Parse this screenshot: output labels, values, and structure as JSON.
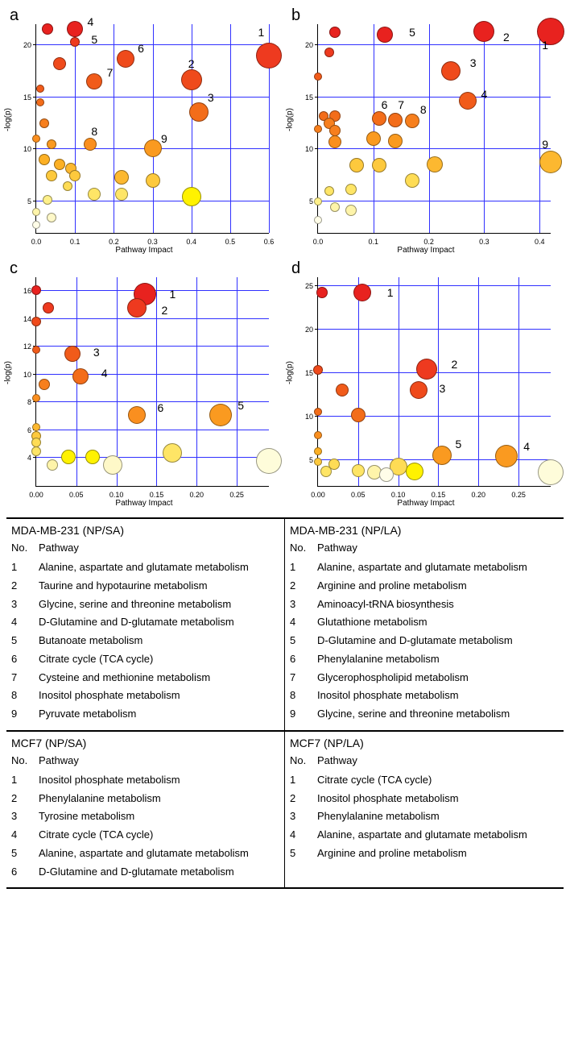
{
  "labels": {
    "xlabel": "Pathway Impact",
    "ylabel": "-log(p)",
    "no": "No.",
    "pathway": "Pathway"
  },
  "panels": {
    "a": {
      "letter": "a",
      "xlim": [
        0,
        0.6
      ],
      "xtick_step": 0.1,
      "x_decimals": 1,
      "ylim": [
        2,
        22
      ],
      "yticks": [
        5,
        10,
        15,
        20
      ],
      "grid_color": "#3030ff",
      "points": [
        {
          "x": 0.6,
          "y": 19.0,
          "r": 16,
          "c": "#ee3a1f",
          "lbl": "1",
          "lx": 0.58,
          "ly": 21.2
        },
        {
          "x": 0.4,
          "y": 16.7,
          "r": 13,
          "c": "#ef4a1b",
          "lbl": "2",
          "lx": 0.4,
          "ly": 18.2
        },
        {
          "x": 0.42,
          "y": 13.6,
          "r": 12,
          "c": "#f36d1a",
          "lbl": "3",
          "lx": 0.45,
          "ly": 15.0
        },
        {
          "x": 0.1,
          "y": 21.5,
          "r": 10,
          "c": "#e8221f",
          "lbl": "4",
          "lx": 0.14,
          "ly": 22.2
        },
        {
          "x": 0.03,
          "y": 21.5,
          "r": 7,
          "c": "#e8221f"
        },
        {
          "x": 0.1,
          "y": 20.3,
          "r": 6,
          "c": "#ee3a1f",
          "lbl": "5",
          "lx": 0.15,
          "ly": 20.5
        },
        {
          "x": 0.23,
          "y": 18.7,
          "r": 11,
          "c": "#ef4a1b",
          "lbl": "6",
          "lx": 0.27,
          "ly": 19.7
        },
        {
          "x": 0.15,
          "y": 16.5,
          "r": 10,
          "c": "#f15b1a",
          "lbl": "7",
          "lx": 0.19,
          "ly": 17.4
        },
        {
          "x": 0.06,
          "y": 18.2,
          "r": 8,
          "c": "#ef4a1b"
        },
        {
          "x": 0.14,
          "y": 10.5,
          "r": 8,
          "c": "#fa8f1f",
          "lbl": "8",
          "lx": 0.15,
          "ly": 11.7
        },
        {
          "x": 0.3,
          "y": 10.1,
          "r": 11,
          "c": "#fa9a20",
          "lbl": "9",
          "lx": 0.33,
          "ly": 11.0
        },
        {
          "x": 0.01,
          "y": 15.8,
          "r": 5,
          "c": "#f15b1a"
        },
        {
          "x": 0.01,
          "y": 14.5,
          "r": 5,
          "c": "#f36d1a"
        },
        {
          "x": 0.02,
          "y": 12.5,
          "r": 6,
          "c": "#f77f1d"
        },
        {
          "x": 0.0,
          "y": 11.0,
          "r": 5,
          "c": "#fa8f1f"
        },
        {
          "x": 0.04,
          "y": 10.5,
          "r": 6,
          "c": "#fa9a20"
        },
        {
          "x": 0.02,
          "y": 9.0,
          "r": 7,
          "c": "#fcb024"
        },
        {
          "x": 0.06,
          "y": 8.6,
          "r": 7,
          "c": "#fcb024"
        },
        {
          "x": 0.09,
          "y": 8.2,
          "r": 7,
          "c": "#fcb830"
        },
        {
          "x": 0.04,
          "y": 7.5,
          "r": 7,
          "c": "#fdc93d"
        },
        {
          "x": 0.1,
          "y": 7.5,
          "r": 7,
          "c": "#fdc93d"
        },
        {
          "x": 0.08,
          "y": 6.5,
          "r": 6,
          "c": "#fedc55"
        },
        {
          "x": 0.22,
          "y": 7.3,
          "r": 9,
          "c": "#fcb830"
        },
        {
          "x": 0.3,
          "y": 7.0,
          "r": 9,
          "c": "#fdc93d"
        },
        {
          "x": 0.15,
          "y": 5.7,
          "r": 8,
          "c": "#fee566"
        },
        {
          "x": 0.22,
          "y": 5.7,
          "r": 8,
          "c": "#fee566"
        },
        {
          "x": 0.4,
          "y": 5.5,
          "r": 12,
          "c": "#fff200"
        },
        {
          "x": 0.03,
          "y": 5.2,
          "r": 6,
          "c": "#fef08a"
        },
        {
          "x": 0.0,
          "y": 4.0,
          "r": 5,
          "c": "#fef4aa"
        },
        {
          "x": 0.04,
          "y": 3.5,
          "r": 6,
          "c": "#fef8c8"
        },
        {
          "x": 0.0,
          "y": 2.8,
          "r": 5,
          "c": "#fffde8"
        }
      ]
    },
    "b": {
      "letter": "b",
      "xlim": [
        0,
        0.42
      ],
      "xtick_step": 0.1,
      "x_decimals": 1,
      "ylim": [
        2,
        22
      ],
      "yticks": [
        5,
        10,
        15,
        20
      ],
      "grid_color": "#3030ff",
      "points": [
        {
          "x": 0.42,
          "y": 21.3,
          "r": 17,
          "c": "#e8221f",
          "lbl": "1",
          "lx": 0.41,
          "ly": 20.0
        },
        {
          "x": 0.3,
          "y": 21.3,
          "r": 13,
          "c": "#e8221f",
          "lbl": "2",
          "lx": 0.34,
          "ly": 20.8
        },
        {
          "x": 0.24,
          "y": 17.5,
          "r": 12,
          "c": "#ef4a1b",
          "lbl": "3",
          "lx": 0.28,
          "ly": 18.3
        },
        {
          "x": 0.27,
          "y": 14.7,
          "r": 11,
          "c": "#f15b1a",
          "lbl": "4",
          "lx": 0.3,
          "ly": 15.3
        },
        {
          "x": 0.12,
          "y": 21.0,
          "r": 10,
          "c": "#e8221f",
          "lbl": "5",
          "lx": 0.17,
          "ly": 21.2
        },
        {
          "x": 0.11,
          "y": 13.0,
          "r": 9,
          "c": "#f36d1a",
          "lbl": "6",
          "lx": 0.12,
          "ly": 14.3
        },
        {
          "x": 0.14,
          "y": 12.8,
          "r": 9,
          "c": "#f36d1a",
          "lbl": "7",
          "lx": 0.15,
          "ly": 14.3
        },
        {
          "x": 0.17,
          "y": 12.7,
          "r": 9,
          "c": "#f77f1d",
          "lbl": "8",
          "lx": 0.19,
          "ly": 13.8
        },
        {
          "x": 0.42,
          "y": 8.8,
          "r": 14,
          "c": "#fcb830",
          "lbl": "9",
          "lx": 0.41,
          "ly": 10.5
        },
        {
          "x": 0.03,
          "y": 21.2,
          "r": 7,
          "c": "#e8221f"
        },
        {
          "x": 0.02,
          "y": 19.3,
          "r": 6,
          "c": "#ee3a1f"
        },
        {
          "x": 0.0,
          "y": 17.0,
          "r": 5,
          "c": "#f15b1a"
        },
        {
          "x": 0.01,
          "y": 13.2,
          "r": 6,
          "c": "#f36d1a"
        },
        {
          "x": 0.03,
          "y": 13.2,
          "r": 7,
          "c": "#f36d1a"
        },
        {
          "x": 0.02,
          "y": 12.5,
          "r": 7,
          "c": "#f77f1d"
        },
        {
          "x": 0.03,
          "y": 11.8,
          "r": 7,
          "c": "#f77f1d"
        },
        {
          "x": 0.0,
          "y": 12.0,
          "r": 5,
          "c": "#f77f1d"
        },
        {
          "x": 0.03,
          "y": 10.7,
          "r": 8,
          "c": "#fa8f1f"
        },
        {
          "x": 0.1,
          "y": 11.0,
          "r": 9,
          "c": "#fa9a20"
        },
        {
          "x": 0.14,
          "y": 10.8,
          "r": 9,
          "c": "#fa9a20"
        },
        {
          "x": 0.07,
          "y": 8.5,
          "r": 9,
          "c": "#fdc93d"
        },
        {
          "x": 0.11,
          "y": 8.5,
          "r": 9,
          "c": "#fdc93d"
        },
        {
          "x": 0.21,
          "y": 8.6,
          "r": 10,
          "c": "#fcb830"
        },
        {
          "x": 0.17,
          "y": 7.0,
          "r": 9,
          "c": "#fedc55"
        },
        {
          "x": 0.02,
          "y": 6.0,
          "r": 6,
          "c": "#fee566"
        },
        {
          "x": 0.06,
          "y": 6.2,
          "r": 7,
          "c": "#fee566"
        },
        {
          "x": 0.0,
          "y": 5.0,
          "r": 5,
          "c": "#fef08a"
        },
        {
          "x": 0.03,
          "y": 4.5,
          "r": 6,
          "c": "#fef4aa"
        },
        {
          "x": 0.06,
          "y": 4.2,
          "r": 7,
          "c": "#fef4aa"
        },
        {
          "x": 0.0,
          "y": 3.2,
          "r": 5,
          "c": "#fffde8"
        }
      ]
    },
    "c": {
      "letter": "c",
      "xlim": [
        0,
        0.29
      ],
      "xtick_step": 0.05,
      "x_decimals": 2,
      "ylim": [
        2,
        17
      ],
      "yticks": [
        4,
        6,
        8,
        10,
        12,
        14,
        16
      ],
      "grid_color": "#3030ff",
      "points": [
        {
          "x": 0.135,
          "y": 15.8,
          "r": 14,
          "c": "#e8221f",
          "lbl": "1",
          "lx": 0.17,
          "ly": 15.8
        },
        {
          "x": 0.125,
          "y": 14.8,
          "r": 12,
          "c": "#ee3a1f",
          "lbl": "2",
          "lx": 0.16,
          "ly": 14.6
        },
        {
          "x": 0.045,
          "y": 11.5,
          "r": 10,
          "c": "#f15b1a",
          "lbl": "3",
          "lx": 0.075,
          "ly": 11.6
        },
        {
          "x": 0.055,
          "y": 9.9,
          "r": 10,
          "c": "#f36d1a",
          "lbl": "4",
          "lx": 0.085,
          "ly": 10.1
        },
        {
          "x": 0.23,
          "y": 7.1,
          "r": 14,
          "c": "#fa9a20",
          "lbl": "5",
          "lx": 0.255,
          "ly": 7.8
        },
        {
          "x": 0.125,
          "y": 7.1,
          "r": 11,
          "c": "#fa8f1f",
          "lbl": "6",
          "lx": 0.155,
          "ly": 7.6
        },
        {
          "x": 0.0,
          "y": 16.1,
          "r": 6,
          "c": "#e8221f"
        },
        {
          "x": 0.015,
          "y": 14.8,
          "r": 7,
          "c": "#ee3a1f"
        },
        {
          "x": 0.0,
          "y": 13.8,
          "r": 6,
          "c": "#ef4a1b"
        },
        {
          "x": 0.0,
          "y": 11.8,
          "r": 5,
          "c": "#f15b1a"
        },
        {
          "x": 0.01,
          "y": 9.3,
          "r": 7,
          "c": "#f77f1d"
        },
        {
          "x": 0.0,
          "y": 8.3,
          "r": 5,
          "c": "#fa8f1f"
        },
        {
          "x": 0.0,
          "y": 6.2,
          "r": 5,
          "c": "#fcb830"
        },
        {
          "x": 0.0,
          "y": 5.6,
          "r": 6,
          "c": "#fdc93d"
        },
        {
          "x": 0.0,
          "y": 5.1,
          "r": 6,
          "c": "#fedc55"
        },
        {
          "x": 0.0,
          "y": 4.5,
          "r": 6,
          "c": "#fee566"
        },
        {
          "x": 0.04,
          "y": 4.1,
          "r": 9,
          "c": "#fff200"
        },
        {
          "x": 0.07,
          "y": 4.1,
          "r": 9,
          "c": "#fff200"
        },
        {
          "x": 0.17,
          "y": 4.4,
          "r": 12,
          "c": "#fee566"
        },
        {
          "x": 0.095,
          "y": 3.5,
          "r": 12,
          "c": "#fef8c8"
        },
        {
          "x": 0.29,
          "y": 3.8,
          "r": 16,
          "c": "#fefcda"
        },
        {
          "x": 0.02,
          "y": 3.5,
          "r": 7,
          "c": "#fef4aa"
        }
      ]
    },
    "d": {
      "letter": "d",
      "xlim": [
        0,
        0.29
      ],
      "xtick_step": 0.05,
      "x_decimals": 2,
      "ylim": [
        2,
        26
      ],
      "yticks": [
        5,
        10,
        15,
        20,
        25
      ],
      "grid_color": "#3030ff",
      "points": [
        {
          "x": 0.055,
          "y": 24.2,
          "r": 11,
          "c": "#e8221f",
          "lbl": "1",
          "lx": 0.09,
          "ly": 24.2
        },
        {
          "x": 0.005,
          "y": 24.2,
          "r": 7,
          "c": "#e8221f"
        },
        {
          "x": 0.135,
          "y": 15.4,
          "r": 13,
          "c": "#ee3a1f",
          "lbl": "2",
          "lx": 0.17,
          "ly": 16.0
        },
        {
          "x": 0.125,
          "y": 13.0,
          "r": 11,
          "c": "#ef4a1b",
          "lbl": "3",
          "lx": 0.155,
          "ly": 13.2
        },
        {
          "x": 0.235,
          "y": 5.4,
          "r": 14,
          "c": "#fa9a20",
          "lbl": "4",
          "lx": 0.26,
          "ly": 6.5
        },
        {
          "x": 0.155,
          "y": 5.5,
          "r": 12,
          "c": "#fa9a20",
          "lbl": "5",
          "lx": 0.175,
          "ly": 6.8
        },
        {
          "x": 0.0,
          "y": 15.3,
          "r": 6,
          "c": "#ef4a1b"
        },
        {
          "x": 0.03,
          "y": 13.0,
          "r": 8,
          "c": "#f15b1a"
        },
        {
          "x": 0.05,
          "y": 10.2,
          "r": 9,
          "c": "#f36d1a"
        },
        {
          "x": 0.0,
          "y": 10.5,
          "r": 5,
          "c": "#f36d1a"
        },
        {
          "x": 0.0,
          "y": 7.8,
          "r": 5,
          "c": "#fa8f1f"
        },
        {
          "x": 0.0,
          "y": 6.0,
          "r": 5,
          "c": "#fcb024"
        },
        {
          "x": 0.0,
          "y": 4.8,
          "r": 5,
          "c": "#fdc93d"
        },
        {
          "x": 0.02,
          "y": 4.5,
          "r": 7,
          "c": "#fedc55"
        },
        {
          "x": 0.01,
          "y": 3.7,
          "r": 7,
          "c": "#fee566"
        },
        {
          "x": 0.05,
          "y": 3.8,
          "r": 8,
          "c": "#fee566"
        },
        {
          "x": 0.07,
          "y": 3.6,
          "r": 9,
          "c": "#fef4aa"
        },
        {
          "x": 0.1,
          "y": 4.2,
          "r": 11,
          "c": "#fedc55"
        },
        {
          "x": 0.12,
          "y": 3.7,
          "r": 11,
          "c": "#fff200"
        },
        {
          "x": 0.085,
          "y": 3.3,
          "r": 9,
          "c": "#fffde8"
        },
        {
          "x": 0.29,
          "y": 3.6,
          "r": 16,
          "c": "#fefcda"
        }
      ]
    }
  },
  "tables": [
    {
      "left": {
        "title": "MDA-MB-231 (NP/SA)",
        "rows": [
          "Alanine, aspartate and glutamate metabolism",
          "Taurine and hypotaurine metabolism",
          "Glycine, serine and threonine metabolism",
          "D-Glutamine and D-glutamate metabolism",
          "Butanoate metabolism",
          "Citrate cycle (TCA cycle)",
          "Cysteine and methionine metabolism",
          "Inositol phosphate metabolism",
          "Pyruvate metabolism"
        ]
      },
      "right": {
        "title": "MDA-MB-231 (NP/LA)",
        "rows": [
          "Alanine, aspartate and glutamate metabolism",
          "Arginine and proline metabolism",
          "Aminoacyl-tRNA biosynthesis",
          "Glutathione metabolism",
          "D-Glutamine and D-glutamate metabolism",
          "Phenylalanine metabolism",
          "Glycerophospholipid metabolism",
          "Inositol phosphate metabolism",
          "Glycine, serine and threonine metabolism"
        ]
      }
    },
    {
      "left": {
        "title": "MCF7 (NP/SA)",
        "rows": [
          "Inositol phosphate metabolism",
          "Phenylalanine metabolism",
          "Tyrosine metabolism",
          "Citrate cycle (TCA cycle)",
          "Alanine, aspartate and glutamate metabolism",
          "D-Glutamine and D-glutamate metabolism"
        ]
      },
      "right": {
        "title": "MCF7 (NP/LA)",
        "rows": [
          "Citrate cycle (TCA cycle)",
          "Inositol phosphate metabolism",
          "Phenylalanine metabolism",
          "Alanine, aspartate and glutamate metabolism",
          "Arginine and proline metabolism"
        ]
      }
    }
  ]
}
